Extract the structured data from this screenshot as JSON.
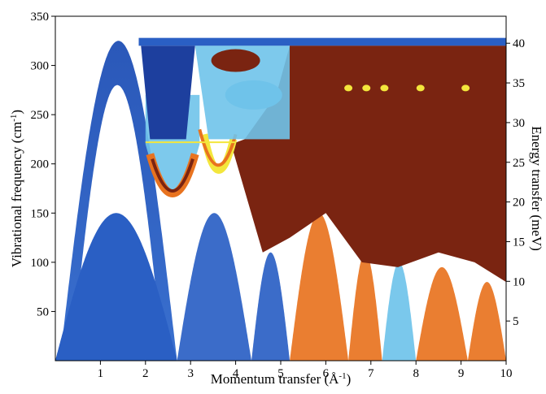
{
  "chart_data": {
    "type": "heatmap",
    "title": "",
    "xlabel": "Momentum transfer (",
    "xlabel_unit": "Å",
    "xlabel_sup": "-1",
    "xlabel_close": ")",
    "ylabel": "Vibrational frequency (cm",
    "ylabel_sup": "-1",
    "ylabel_close": ")",
    "y2label": "Energy transfer (meV)",
    "xlim": [
      0,
      10
    ],
    "ylim": [
      0,
      350
    ],
    "y2lim": [
      0,
      43.4
    ],
    "x_ticks": [
      1,
      2,
      3,
      4,
      5,
      6,
      7,
      8,
      9,
      10
    ],
    "y_ticks": [
      50,
      100,
      150,
      200,
      250,
      300,
      350
    ],
    "y2_ticks": [
      5,
      10,
      15,
      20,
      25,
      30,
      35,
      40
    ],
    "grid": false,
    "colormap": "jet",
    "colors": {
      "background": "#ffffff",
      "low": "#2a5fc4",
      "mid_low": "#6fc3ea",
      "mid": "#f3e63c",
      "mid_high": "#e8731f",
      "high": "#7a2411"
    },
    "dispersion_branches": [
      {
        "name": "acoustic_low",
        "peak_x": 1.3,
        "peak_y": 150,
        "period": 2.6
      },
      {
        "name": "acoustic_high",
        "peak_x": 1.3,
        "peak_y": 280,
        "period": 2.6
      },
      {
        "name": "optical_top",
        "y": 325
      }
    ]
  }
}
